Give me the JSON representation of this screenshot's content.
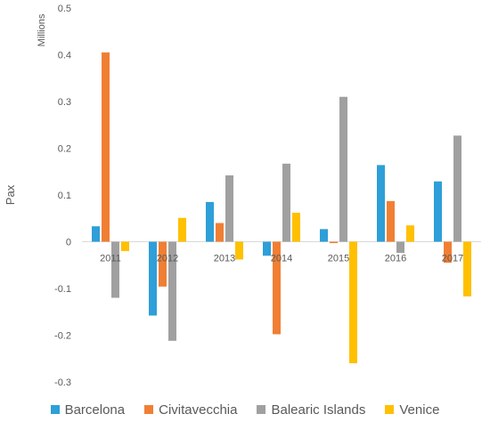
{
  "chart_data": {
    "type": "bar",
    "unit_label": "Millions",
    "ylabel": "Pax",
    "xlabel": "",
    "ylim": [
      -0.3,
      0.5
    ],
    "yticks": [
      "0.5",
      "0.4",
      "0.3",
      "0.2",
      "0.1",
      "0",
      "-0.1",
      "-0.2",
      "-0.3"
    ],
    "ytick_values": [
      0.5,
      0.4,
      0.3,
      0.2,
      0.1,
      0,
      -0.1,
      -0.2,
      -0.3
    ],
    "categories": [
      "2011",
      "2012",
      "2013",
      "2014",
      "2015",
      "2016",
      "2017"
    ],
    "series": [
      {
        "name": "Barcelona",
        "color": "#2E9FD8",
        "values": [
          0.033,
          -0.158,
          0.085,
          -0.03,
          0.027,
          0.164,
          0.129
        ]
      },
      {
        "name": "Civitavecchia",
        "color": "#F07F34",
        "values": [
          0.405,
          -0.096,
          0.04,
          -0.198,
          -0.003,
          0.087,
          -0.045
        ]
      },
      {
        "name": "Balearic Islands",
        "color": "#A0A0A0",
        "values": [
          -0.12,
          -0.212,
          0.142,
          0.167,
          0.31,
          -0.024,
          0.227
        ]
      },
      {
        "name": "Venice",
        "color": "#FFC000",
        "values": [
          -0.02,
          0.051,
          -0.038,
          0.062,
          -0.26,
          0.035,
          -0.117
        ]
      }
    ],
    "grid": false,
    "legend_position": "bottom"
  }
}
